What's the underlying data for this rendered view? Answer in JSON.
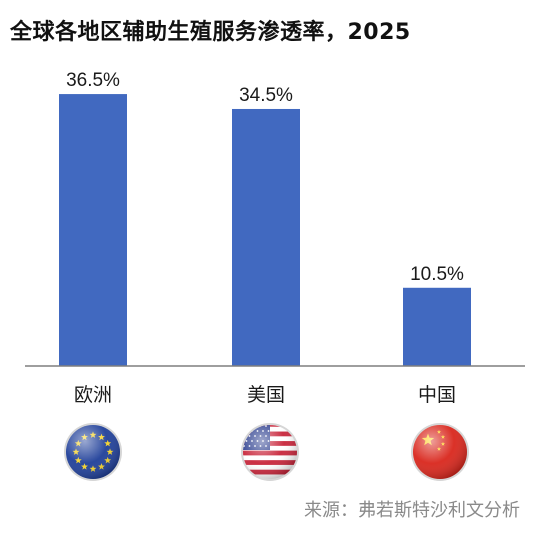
{
  "title": "全球各地区辅助生殖服务渗透率，2025",
  "source": "来源：弗若斯特沙利文分析",
  "colors": {
    "bar": "#4169C0",
    "axis": "#7f7f7f"
  },
  "chart_data": {
    "type": "bar",
    "title": "全球各地区辅助生殖服务渗透率，2025",
    "categories": [
      "欧洲",
      "美国",
      "中国"
    ],
    "values": [
      36.5,
      34.5,
      10.5
    ],
    "data_labels": [
      "36.5%",
      "34.5%",
      "10.5%"
    ],
    "category_icons": [
      "eu-flag-icon",
      "us-flag-icon",
      "china-flag-icon"
    ],
    "unit": "%",
    "xlabel": "",
    "ylabel": "",
    "ylim": [
      0,
      40
    ],
    "grid": false,
    "legend": "none"
  }
}
